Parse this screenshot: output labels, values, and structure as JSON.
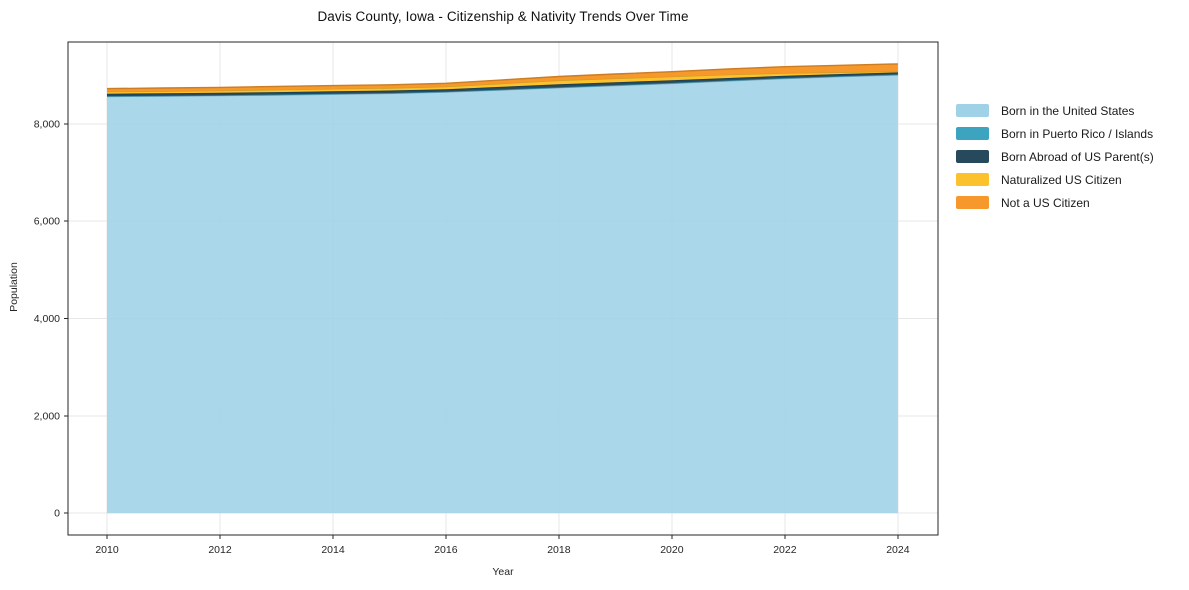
{
  "chart_data": {
    "type": "area",
    "stacked": true,
    "title": "Davis County, Iowa - Citizenship & Nativity Trends Over Time",
    "xlabel": "Year",
    "ylabel": "Population",
    "x": [
      2010,
      2011,
      2012,
      2013,
      2014,
      2015,
      2016,
      2017,
      2018,
      2019,
      2020,
      2021,
      2022,
      2023,
      2024
    ],
    "series": [
      {
        "name": "Born in the United States",
        "color": "#9fd1e7",
        "values": [
          8560,
          8568,
          8578,
          8592,
          8608,
          8624,
          8650,
          8695,
          8740,
          8785,
          8830,
          8880,
          8930,
          8970,
          9005
        ]
      },
      {
        "name": "Born in Puerto Rico / Islands",
        "color": "#3da4c0",
        "values": [
          8,
          8,
          9,
          9,
          9,
          9,
          10,
          10,
          10,
          11,
          10,
          10,
          11,
          10,
          10
        ]
      },
      {
        "name": "Born Abroad of US Parent(s)",
        "color": "#26495c",
        "values": [
          50,
          50,
          49,
          50,
          51,
          50,
          50,
          55,
          60,
          58,
          55,
          50,
          46,
          43,
          41
        ]
      },
      {
        "name": "Naturalized US Citizen",
        "color": "#fcc22d",
        "values": [
          42,
          44,
          46,
          48,
          50,
          52,
          56,
          68,
          80,
          78,
          75,
          70,
          55,
          35,
          20
        ]
      },
      {
        "name": "Not a US Citizen",
        "color": "#f6982b",
        "values": [
          62,
          64,
          66,
          68,
          66,
          65,
          66,
          74,
          82,
          90,
          100,
          115,
          130,
          144,
          154
        ]
      }
    ],
    "xlim": [
      2009.31,
      2024.71
    ],
    "ylim": [
      -450,
      9680
    ],
    "xticks": [
      2010,
      2012,
      2014,
      2016,
      2018,
      2020,
      2022,
      2024
    ],
    "xtick_labels": [
      "2010",
      "2012",
      "2014",
      "2016",
      "2018",
      "2020",
      "2022",
      "2024"
    ],
    "yticks": [
      0,
      2000,
      4000,
      6000,
      8000
    ],
    "ytick_labels": [
      "0",
      "2,000",
      "4,000",
      "6,000",
      "8,000"
    ],
    "grid": true,
    "legend_position": "right",
    "grid_color": "#e7e7e7",
    "frame_color": "#262626",
    "tick_text_color": "#262626",
    "text_color": "#1a1a1a",
    "background": "#ffffff"
  }
}
